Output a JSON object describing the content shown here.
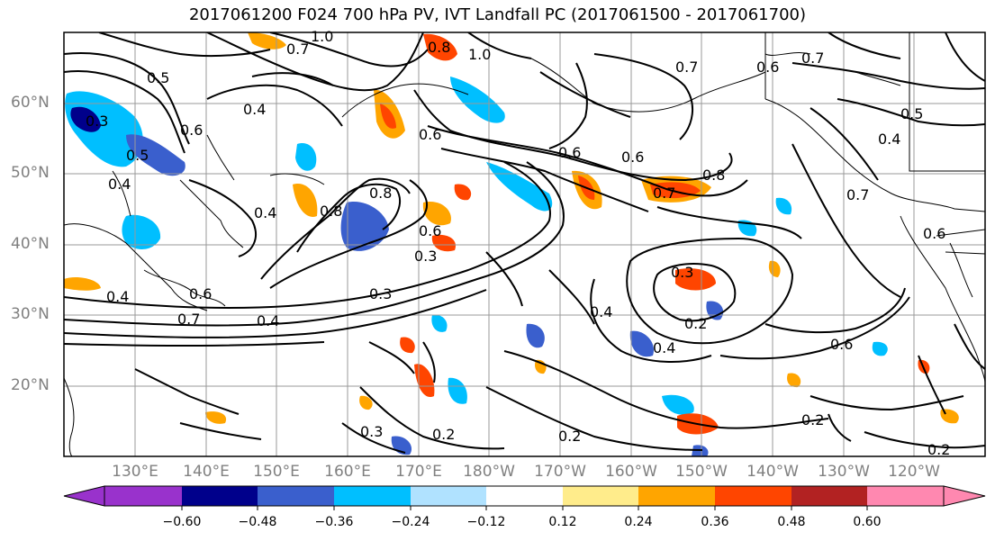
{
  "title": "2017061200 F024 700 hPa PV, IVT Landfall PC (2017061500 - 2017061700)",
  "lat_labels": [
    "60°N",
    "50°N",
    "40°N",
    "30°N",
    "20°N"
  ],
  "lon_labels": [
    "130°E",
    "140°E",
    "150°E",
    "160°E",
    "170°E",
    "180°W",
    "170°W",
    "160°W",
    "150°W",
    "140°W",
    "130°W",
    "120°W"
  ],
  "colorbar": {
    "ticks": [
      "−0.60",
      "−0.48",
      "−0.36",
      "−0.24",
      "−0.12",
      "0.12",
      "0.24",
      "0.36",
      "0.48",
      "0.60"
    ],
    "colors": [
      "#9932cc",
      "#00008b",
      "#3a5fcd",
      "#00bfff",
      "#b0e2ff",
      "#ffffff",
      "#ffec8b",
      "#ffa500",
      "#ff4500",
      "#b22222",
      "#ff88b0"
    ]
  },
  "contour_labels": [
    "1.0",
    "0.7",
    "0.8",
    "1.0",
    "0.6",
    "0.5",
    "0.4",
    "0.3",
    "0.6",
    "0.5",
    "0.4",
    "0.8",
    "0.6",
    "0.3",
    "0.2",
    "0.7",
    "0.8",
    "0.6",
    "0.3",
    "0.2",
    "0.4",
    "0.4",
    "0.6",
    "0.2",
    "0.2",
    "0.6",
    "0.7",
    "0.5",
    "0.4",
    "0.3",
    "0.4",
    "0.7",
    "0.6",
    "0.8",
    "0.3",
    "0.4",
    "0.7",
    "0.4",
    "0.2",
    "0.6",
    "0.6",
    "0.7"
  ]
}
